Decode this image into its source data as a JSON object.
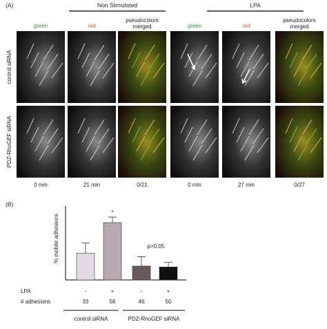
{
  "panel_a": {
    "label": "(A)",
    "conditions": [
      "Non Stimulated",
      "LPA"
    ],
    "columns": [
      "green",
      "red",
      "pseudocolors merged",
      "green",
      "red",
      "pseudocolors merged"
    ],
    "rows": [
      "control siRNA",
      "PDZ-RhoGEF siRNA"
    ],
    "times": [
      "0 min",
      "21 min",
      "0/21",
      "0 min",
      "27 min",
      "0/27"
    ]
  },
  "chart_data": {
    "type": "bar",
    "panel_label": "(B)",
    "ylabel": "% mobile adhesions",
    "categories": [
      null,
      null,
      null,
      null
    ],
    "values": [
      29,
      62,
      15,
      14
    ],
    "errors": [
      11,
      6,
      10,
      5
    ],
    "colors": [
      "#e2dae2",
      "#b9a7b1",
      "#6b5a5a",
      "#111111"
    ],
    "ylim": [
      0,
      80
    ],
    "annotations": [
      "*",
      "p>0.05"
    ],
    "rows": [
      {
        "label": "LPA",
        "cells": [
          "-",
          "+",
          "-",
          "+"
        ]
      },
      {
        "label": "# adhesions",
        "cells": [
          "33",
          "56",
          "46",
          "50"
        ]
      }
    ],
    "groups": [
      "control siRNA",
      "PDZ-RhoGEF siRNA"
    ]
  }
}
